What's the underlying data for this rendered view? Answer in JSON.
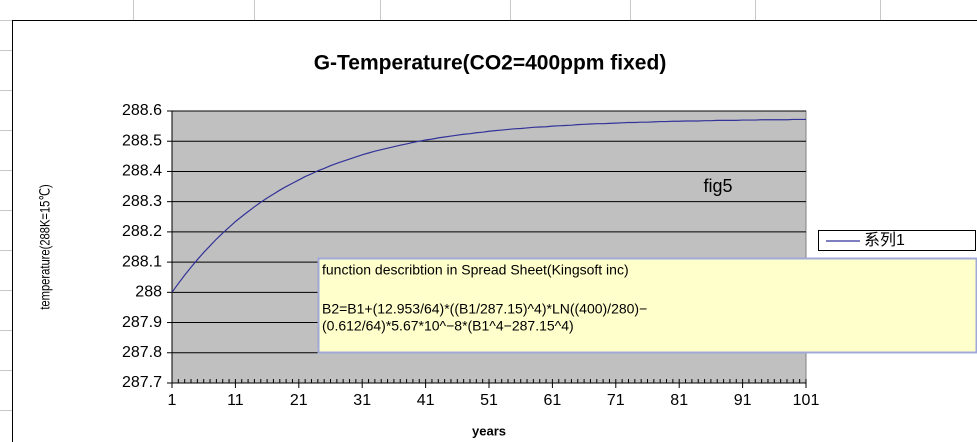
{
  "chart_data": {
    "type": "line",
    "title": "G-Temperature(CO2=400ppm fixed)",
    "x_label": "years",
    "y_label": "temperature(288K=15℃)",
    "annotation": "fig5",
    "text_box": {
      "title": "function describtion in Spread Sheet(Kingsoft inc)",
      "lines": [
        "B2=B1+(12.953/64)*((B1/287.15)^4)*LN((400)/280)−",
        "(0.612/64)*5.67*10^−8*(B1^4−287.15^4)"
      ]
    },
    "legend": "right",
    "grid": true,
    "xlim": [
      1,
      101
    ],
    "xticks": [
      1,
      11,
      21,
      31,
      41,
      51,
      61,
      71,
      81,
      91,
      101
    ],
    "ylim": [
      287.7,
      288.6
    ],
    "yticks": [
      287.7,
      287.8,
      287.9,
      288,
      288.1,
      288.2,
      288.3,
      288.4,
      288.5,
      288.6
    ],
    "x": [
      1,
      2,
      3,
      4,
      5,
      6,
      7,
      8,
      9,
      10,
      11,
      12,
      13,
      14,
      15,
      16,
      17,
      18,
      19,
      20,
      21,
      22,
      23,
      24,
      25,
      26,
      27,
      28,
      29,
      30,
      31,
      32,
      33,
      34,
      35,
      36,
      37,
      38,
      39,
      40,
      41,
      42,
      43,
      44,
      45,
      46,
      47,
      48,
      49,
      50,
      51,
      52,
      53,
      54,
      55,
      56,
      57,
      58,
      59,
      60,
      61,
      62,
      63,
      64,
      65,
      66,
      67,
      68,
      69,
      70,
      71,
      72,
      73,
      74,
      75,
      76,
      77,
      78,
      79,
      80,
      81,
      82,
      83,
      84,
      85,
      86,
      87,
      88,
      89,
      90,
      91,
      92,
      93,
      94,
      95,
      96,
      97,
      98,
      99,
      100,
      101
    ],
    "series": [
      {
        "name": "系列1",
        "color": "#333399",
        "values": [
          288.0,
          288.029,
          288.057,
          288.083,
          288.108,
          288.132,
          288.154,
          288.176,
          288.196,
          288.215,
          288.234,
          288.251,
          288.267,
          288.283,
          288.298,
          288.312,
          288.325,
          288.338,
          288.35,
          288.361,
          288.372,
          288.383,
          288.392,
          288.402,
          288.41,
          288.419,
          288.427,
          288.434,
          288.441,
          288.448,
          288.455,
          288.461,
          288.467,
          288.472,
          288.477,
          288.482,
          288.487,
          288.491,
          288.496,
          288.5,
          288.504,
          288.507,
          288.511,
          288.514,
          288.517,
          288.52,
          288.523,
          288.525,
          288.528,
          288.53,
          288.533,
          288.535,
          288.537,
          288.539,
          288.541,
          288.542,
          288.544,
          288.546,
          288.547,
          288.548,
          288.55,
          288.551,
          288.552,
          288.553,
          288.555,
          288.556,
          288.557,
          288.558,
          288.558,
          288.559,
          288.56,
          288.561,
          288.562,
          288.562,
          288.563,
          288.563,
          288.564,
          288.565,
          288.565,
          288.566,
          288.566,
          288.567,
          288.567,
          288.567,
          288.568,
          288.568,
          288.569,
          288.569,
          288.569,
          288.569,
          288.57,
          288.57,
          288.57,
          288.571,
          288.571,
          288.571,
          288.571,
          288.571,
          288.572,
          288.572,
          288.572
        ]
      }
    ]
  }
}
